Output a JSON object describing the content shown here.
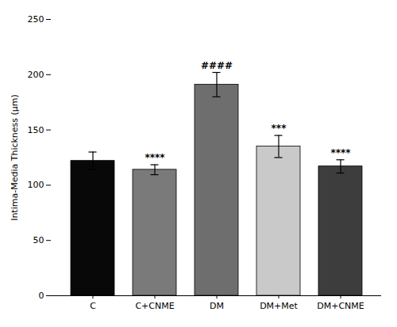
{
  "chart_data": {
    "type": "bar",
    "categories": [
      "C",
      "C+CNME",
      "DM",
      "DM+Met",
      "DM+CNME"
    ],
    "values": [
      122.0,
      114.0,
      191.0,
      135.0,
      117.0
    ],
    "errors": [
      8.0,
      4.5,
      11.0,
      10.0,
      6.0
    ],
    "colors": [
      "#080808",
      "#7a7a7a",
      "#6e6e6e",
      "#c9c9c9",
      "#3d3d3d"
    ],
    "ylabel": "Intima-Media Thickness (μm)",
    "ylim": [
      0,
      250
    ],
    "yticks": [
      0,
      50,
      100,
      150,
      200,
      250
    ],
    "annotations": [
      {
        "category": "C+CNME",
        "text": "****"
      },
      {
        "category": "DM",
        "text": "####"
      },
      {
        "category": "DM+Met",
        "text": "***"
      },
      {
        "category": "DM+CNME",
        "text": "****"
      }
    ],
    "grid": false
  }
}
